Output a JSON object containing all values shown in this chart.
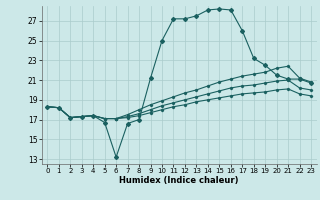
{
  "xlabel": "Humidex (Indice chaleur)",
  "ylabel": "",
  "xlim": [
    -0.5,
    23.5
  ],
  "ylim": [
    12.5,
    28.5
  ],
  "xticks": [
    0,
    1,
    2,
    3,
    4,
    5,
    6,
    7,
    8,
    9,
    10,
    11,
    12,
    13,
    14,
    15,
    16,
    17,
    18,
    19,
    20,
    21,
    22,
    23
  ],
  "yticks": [
    13,
    15,
    17,
    19,
    21,
    23,
    25,
    27
  ],
  "bg_color": "#cce8e8",
  "grid_color": "#aacccc",
  "line_color": "#1a6060",
  "line1_x": [
    0,
    1,
    2,
    3,
    4,
    5,
    6,
    7,
    8,
    9,
    10,
    11,
    12,
    13,
    14,
    15,
    16,
    17,
    18,
    19,
    20,
    21,
    22,
    23
  ],
  "line1_y": [
    18.3,
    18.2,
    17.2,
    17.3,
    17.4,
    16.7,
    13.2,
    16.6,
    17.0,
    21.2,
    25.0,
    27.2,
    27.2,
    27.5,
    28.1,
    28.2,
    28.1,
    26.0,
    23.2,
    22.5,
    21.5,
    21.1,
    21.1,
    20.7
  ],
  "line2_x": [
    0,
    1,
    2,
    3,
    4,
    5,
    6,
    7,
    8,
    9,
    10,
    11,
    12,
    13,
    14,
    15,
    16,
    17,
    18,
    19,
    20,
    21,
    22,
    23
  ],
  "line2_y": [
    18.3,
    18.2,
    17.2,
    17.3,
    17.4,
    17.1,
    17.1,
    17.5,
    18.0,
    18.5,
    18.9,
    19.3,
    19.7,
    20.0,
    20.4,
    20.8,
    21.1,
    21.4,
    21.6,
    21.8,
    22.2,
    22.4,
    21.2,
    20.8
  ],
  "line3_x": [
    0,
    1,
    2,
    3,
    4,
    5,
    6,
    7,
    8,
    9,
    10,
    11,
    12,
    13,
    14,
    15,
    16,
    17,
    18,
    19,
    20,
    21,
    22,
    23
  ],
  "line3_y": [
    18.3,
    18.2,
    17.2,
    17.3,
    17.4,
    17.1,
    17.1,
    17.3,
    17.6,
    18.0,
    18.4,
    18.7,
    19.0,
    19.3,
    19.6,
    19.9,
    20.2,
    20.4,
    20.5,
    20.7,
    20.9,
    21.0,
    20.2,
    20.0
  ],
  "line4_x": [
    0,
    1,
    2,
    3,
    4,
    5,
    6,
    7,
    8,
    9,
    10,
    11,
    12,
    13,
    14,
    15,
    16,
    17,
    18,
    19,
    20,
    21,
    22,
    23
  ],
  "line4_y": [
    18.3,
    18.2,
    17.2,
    17.3,
    17.4,
    17.1,
    17.1,
    17.2,
    17.4,
    17.7,
    18.0,
    18.3,
    18.5,
    18.8,
    19.0,
    19.2,
    19.4,
    19.6,
    19.7,
    19.8,
    20.0,
    20.1,
    19.6,
    19.4
  ]
}
